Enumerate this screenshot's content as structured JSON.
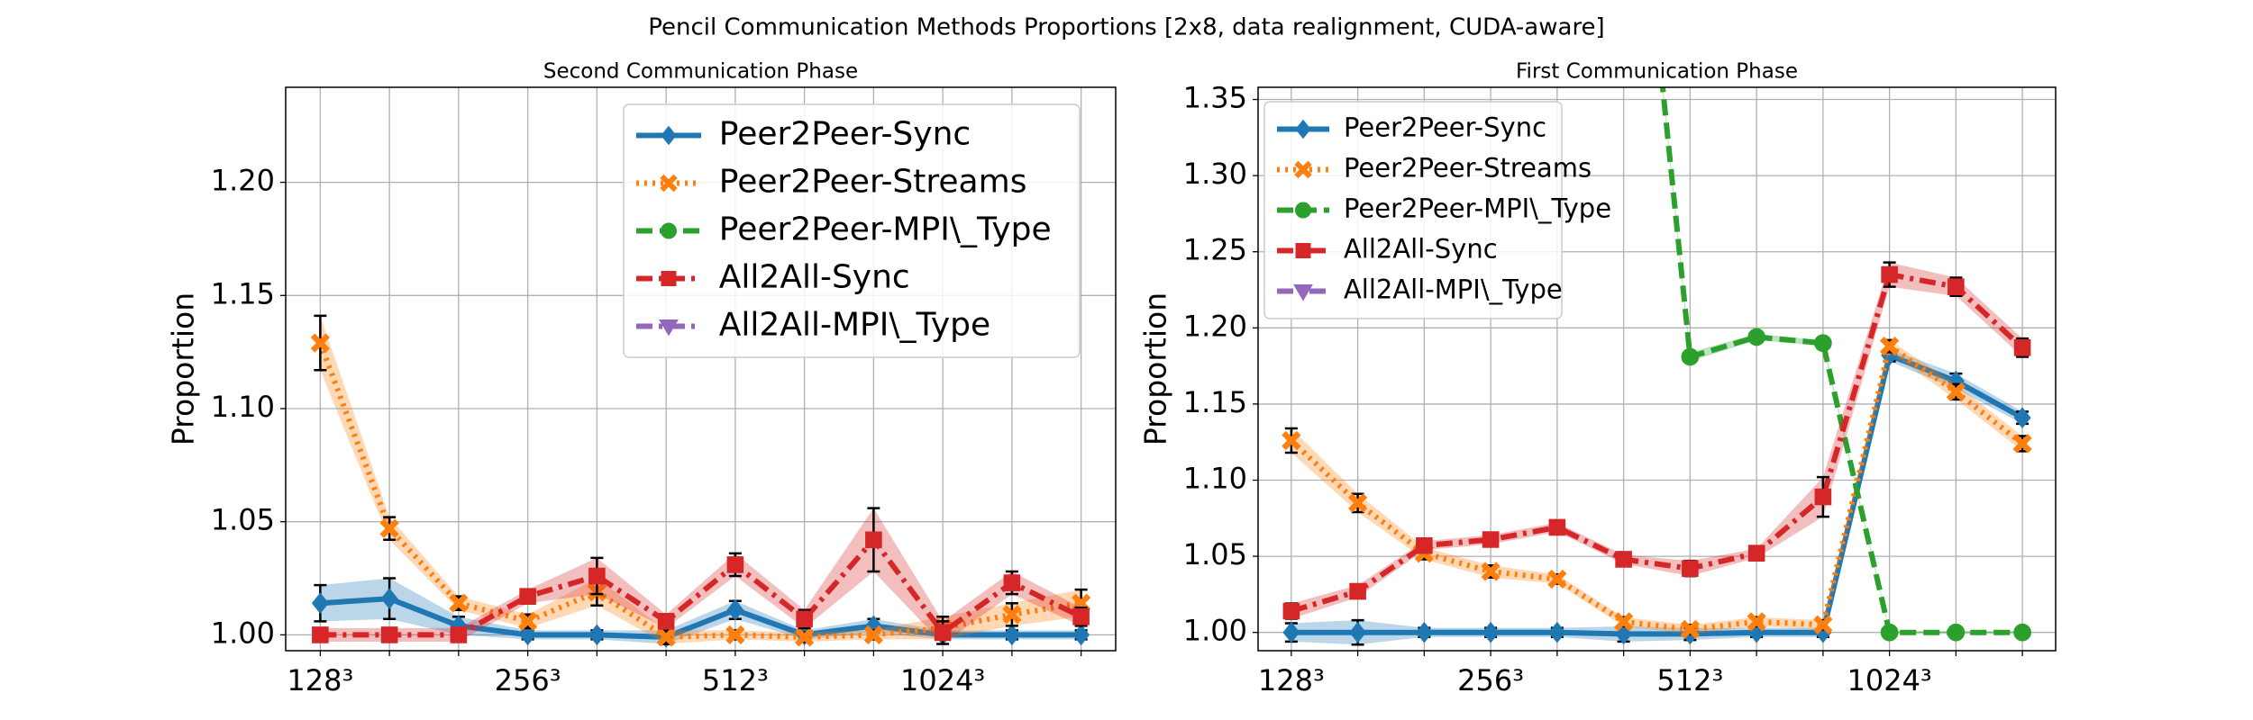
{
  "title": "Pencil Communication Methods Proportions [2x8, data realignment, CUDA-aware]",
  "chart_data": [
    {
      "type": "line",
      "title": "Second Communication Phase",
      "ylabel": "Proportion",
      "categories": [
        "128³",
        null,
        null,
        "256³",
        null,
        null,
        "512³",
        null,
        null,
        "1024³",
        null,
        null
      ],
      "ylim": [
        0.993,
        1.242
      ],
      "yticks": [
        {
          "value": 1.0,
          "label": "1.00"
        },
        {
          "value": 1.05,
          "label": "1.05"
        },
        {
          "value": 1.1,
          "label": "1.10"
        },
        {
          "value": 1.15,
          "label": "1.15"
        },
        {
          "value": 1.2,
          "label": "1.20"
        }
      ],
      "grid": true,
      "legend": "upper right",
      "series": [
        {
          "name": "Peer2Peer-Sync",
          "color": "#1f77b4",
          "linestyle": "solid",
          "marker": "diamond",
          "values": [
            1.014,
            1.016,
            1.004,
            1.0,
            1.0,
            0.999,
            1.011,
            1.0,
            1.004,
            1.0,
            1.0,
            1.0
          ],
          "errors": [
            0.008,
            0.009,
            0.004,
            0.002,
            0.002,
            0.003,
            0.004,
            0.002,
            0.003,
            0.002,
            0.002,
            0.002
          ]
        },
        {
          "name": "Peer2Peer-Streams",
          "color": "#ff7f0e",
          "linestyle": "dotted",
          "marker": "x",
          "values": [
            1.129,
            1.047,
            1.014,
            1.006,
            1.019,
            0.999,
            1.0,
            0.999,
            1.0,
            1.003,
            1.009,
            1.014
          ],
          "errors": [
            0.012,
            0.005,
            0.003,
            0.003,
            0.006,
            0.003,
            0.002,
            0.002,
            0.002,
            0.005,
            0.005,
            0.006
          ]
        },
        {
          "name": "Peer2Peer-MPI\\_Type",
          "color": "#2ca02c",
          "linestyle": "dashed",
          "marker": "circle",
          "values": [
            null,
            null,
            null,
            null,
            null,
            null,
            null,
            null,
            null,
            null,
            null,
            null
          ],
          "errors": [
            null,
            null,
            null,
            null,
            null,
            null,
            null,
            null,
            null,
            null,
            null,
            null
          ]
        },
        {
          "name": "All2All-Sync",
          "color": "#d62728",
          "linestyle": "dashdot",
          "marker": "square",
          "values": [
            1.0,
            1.0,
            1.0,
            1.017,
            1.026,
            1.006,
            1.031,
            1.007,
            1.042,
            1.001,
            1.023,
            1.008
          ],
          "errors": [
            0.003,
            0.003,
            0.003,
            0.003,
            0.008,
            0.003,
            0.005,
            0.004,
            0.014,
            0.005,
            0.005,
            0.004
          ]
        },
        {
          "name": "All2All-MPI\\_Type",
          "color": "#9467bd",
          "linestyle": "dashdot",
          "marker": "triangle",
          "values": [
            null,
            null,
            null,
            null,
            null,
            null,
            null,
            null,
            null,
            null,
            null,
            null
          ],
          "errors": [
            null,
            null,
            null,
            null,
            null,
            null,
            null,
            null,
            null,
            null,
            null,
            null
          ]
        }
      ]
    },
    {
      "type": "line",
      "title": "First Communication Phase",
      "ylabel": "Proportion",
      "categories": [
        "128³",
        null,
        null,
        "256³",
        null,
        null,
        "512³",
        null,
        null,
        "1024³",
        null,
        null
      ],
      "ylim": [
        0.988,
        1.358
      ],
      "yticks": [
        {
          "value": 1.0,
          "label": "1.00"
        },
        {
          "value": 1.05,
          "label": "1.05"
        },
        {
          "value": 1.1,
          "label": "1.10"
        },
        {
          "value": 1.15,
          "label": "1.15"
        },
        {
          "value": 1.2,
          "label": "1.20"
        },
        {
          "value": 1.25,
          "label": "1.25"
        },
        {
          "value": 1.3,
          "label": "1.30"
        },
        {
          "value": 1.35,
          "label": "1.35"
        }
      ],
      "grid": true,
      "legend": "upper left",
      "series": [
        {
          "name": "Peer2Peer-Sync",
          "color": "#1f77b4",
          "linestyle": "solid",
          "marker": "diamond",
          "values": [
            1.0,
            1.0,
            1.0,
            1.0,
            1.0,
            0.999,
            0.999,
            1.0,
            1.0,
            1.182,
            1.165,
            1.141
          ],
          "errors": [
            0.006,
            0.008,
            0.003,
            0.003,
            0.003,
            0.005,
            0.004,
            0.003,
            0.003,
            0.004,
            0.005,
            0.004
          ]
        },
        {
          "name": "Peer2Peer-Streams",
          "color": "#ff7f0e",
          "linestyle": "dotted",
          "marker": "x",
          "values": [
            1.126,
            1.085,
            1.052,
            1.04,
            1.035,
            1.007,
            1.002,
            1.007,
            1.005,
            1.188,
            1.158,
            1.124
          ],
          "errors": [
            0.008,
            0.006,
            0.004,
            0.004,
            0.003,
            0.003,
            0.003,
            0.003,
            0.003,
            0.004,
            0.005,
            0.005
          ]
        },
        {
          "name": "Peer2Peer-MPI\\_Type",
          "color": "#2ca02c",
          "linestyle": "dashed",
          "marker": "circle",
          "values": [
            null,
            null,
            null,
            null,
            null,
            1.61,
            1.181,
            1.194,
            1.19,
            1.0,
            1.0,
            1.0
          ],
          "errors": [
            null,
            null,
            null,
            null,
            null,
            0.003,
            0.003,
            0.002,
            0.002,
            0.001,
            0.001,
            0.001
          ]
        },
        {
          "name": "All2All-Sync",
          "color": "#d62728",
          "linestyle": "dashdot",
          "marker": "square",
          "values": [
            1.014,
            1.027,
            1.057,
            1.061,
            1.069,
            1.048,
            1.042,
            1.052,
            1.089,
            1.235,
            1.227,
            1.187
          ],
          "errors": [
            0.005,
            0.004,
            0.003,
            0.003,
            0.003,
            0.003,
            0.005,
            0.003,
            0.013,
            0.008,
            0.006,
            0.006
          ]
        },
        {
          "name": "All2All-MPI\\_Type",
          "color": "#9467bd",
          "linestyle": "dashdot",
          "marker": "triangle",
          "values": [
            null,
            null,
            null,
            null,
            null,
            null,
            null,
            null,
            null,
            null,
            null,
            null
          ],
          "errors": [
            null,
            null,
            null,
            null,
            null,
            null,
            null,
            null,
            null,
            null,
            null,
            null
          ]
        }
      ]
    }
  ]
}
